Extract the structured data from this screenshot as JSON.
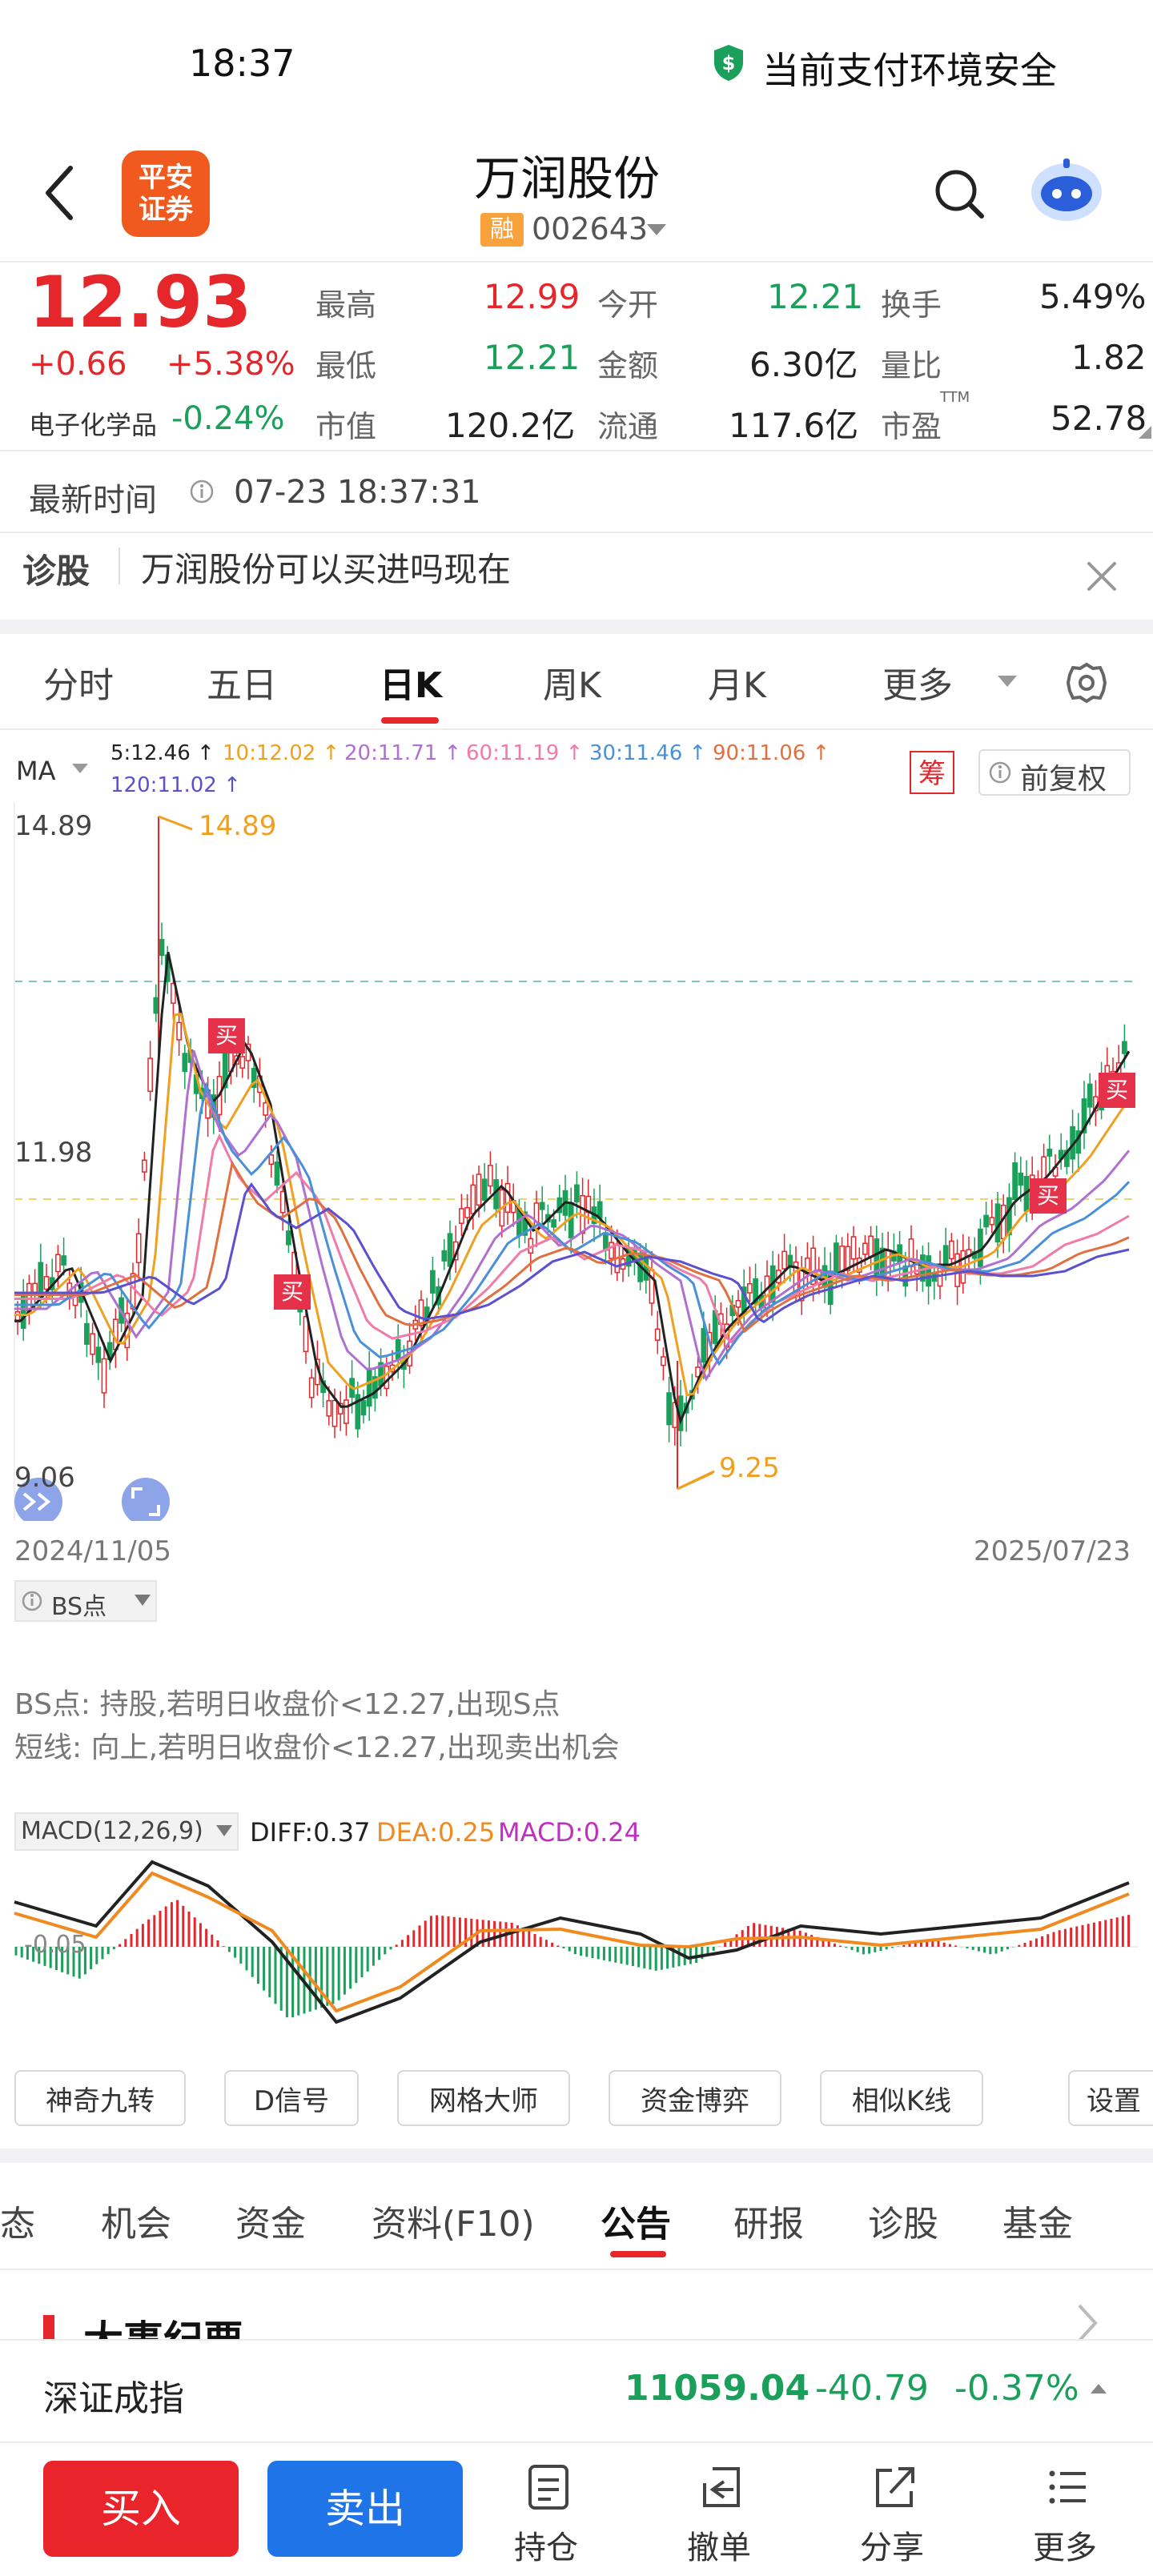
{
  "status_bar": {
    "time": "18:37",
    "security_text": "当前支付环境安全"
  },
  "header": {
    "logo_text_1": "平安",
    "logo_text_2": "证券",
    "stock_name": "万润股份",
    "margin_tag": "融",
    "stock_code": "002643"
  },
  "quote": {
    "price": "12.93",
    "change": "+0.66",
    "change_pct": "+5.38%",
    "sector": "电子化学品",
    "sector_pct": "-0.24%",
    "high_label": "最高",
    "high": "12.99",
    "open_label": "今开",
    "open": "12.21",
    "turnover_label": "换手",
    "turnover": "5.49%",
    "low_label": "最低",
    "low": "12.21",
    "amount_label": "金额",
    "amount": "6.30亿",
    "vol_ratio_label": "量比",
    "vol_ratio": "1.82",
    "mcap_label": "市值",
    "mcap": "120.2亿",
    "float_label": "流通",
    "float": "117.6亿",
    "pe_label": "市盈",
    "pe_sup": "TTM",
    "pe": "52.78"
  },
  "update": {
    "label": "最新时间",
    "time": "07-23 18:37:31"
  },
  "diagnosis": {
    "label": "诊股",
    "text": "万润股份可以买进吗现在"
  },
  "chart_tabs": [
    "分时",
    "五日",
    "日K",
    "周K",
    "月K",
    "更多"
  ],
  "ma_bar": {
    "label": "MA",
    "items": [
      {
        "text": "5:12.46",
        "color": "#222222"
      },
      {
        "text": "10:12.02",
        "color": "#f0a020"
      },
      {
        "text": "20:11.71",
        "color": "#b070d0"
      },
      {
        "text": "60:11.19",
        "color": "#f07aa8"
      },
      {
        "text": "30:11.46",
        "color": "#4a90d9"
      },
      {
        "text": "90:11.06",
        "color": "#e07040"
      },
      {
        "text": "120:11.02",
        "color": "#5a50d0"
      }
    ],
    "chip_label": "筹",
    "adjust_label": "前复权"
  },
  "kchart": {
    "y_top": "14.89",
    "y_mid": "11.98",
    "y_bot": "9.06",
    "high_mark": "14.89",
    "low_mark": "9.25",
    "buy_label": "买",
    "date_start": "2024/11/05",
    "date_end": "2025/07/23"
  },
  "bs": {
    "label": "BS点",
    "line1": "BS点: 持股,若明日收盘价<12.27,出现S点",
    "line2": "短线: 向上,若明日收盘价<12.27,出现卖出机会"
  },
  "macd": {
    "label": "MACD(12,26,9)",
    "diff": "DIFF:0.37",
    "dea": "DEA:0.25",
    "macd": "MACD:0.24",
    "axis": "-0.05"
  },
  "tools": [
    "神奇九转",
    "D信号",
    "网格大师",
    "资金博弈",
    "相似K线",
    "设置"
  ],
  "content_tabs": [
    "态",
    "机会",
    "资金",
    "资料(F10)",
    "公告",
    "研报",
    "诊股",
    "基金"
  ],
  "section_title": "大事纪要",
  "index_bar": {
    "name": "深证成指",
    "value": "11059.04",
    "change": "-40.79",
    "pct": "-0.37%"
  },
  "bottom": {
    "buy": "买入",
    "sell": "卖出",
    "hold": "持仓",
    "cancel": "撤单",
    "share": "分享",
    "more": "更多"
  }
}
